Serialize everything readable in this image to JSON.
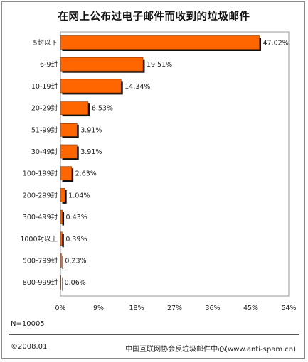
{
  "chart_data": {
    "type": "bar",
    "orientation": "horizontal",
    "title": "在网上公布过电子邮件而收到的垃圾邮件",
    "categories": [
      "5封以下",
      "6-9封",
      "10-19封",
      "20-29封",
      "51-99封",
      "30-49封",
      "100-199封",
      "200-299封",
      "300-499封",
      "1000封以上",
      "500-799封",
      "800-999封"
    ],
    "values": [
      47.02,
      19.51,
      14.34,
      6.53,
      3.91,
      3.91,
      2.63,
      1.04,
      0.43,
      0.39,
      0.23,
      0.06
    ],
    "value_labels": [
      "47.02%",
      "19.51%",
      "14.34%",
      "6.53%",
      "3.91%",
      "3.91%",
      "2.63%",
      "1.04%",
      "0.43%",
      "0.39%",
      "0.23%",
      "0.06%"
    ],
    "xlim": [
      0,
      54
    ],
    "x_ticks": [
      0,
      9,
      18,
      27,
      36,
      45,
      54
    ],
    "x_tick_labels": [
      "0%",
      "9%",
      "18%",
      "27%",
      "36%",
      "45%",
      "54%"
    ],
    "bar_color": "#ff6600",
    "shadow_color": "#111111",
    "grid": false
  },
  "sample_size": "N=10005",
  "footer": {
    "date": "©2008.01",
    "source": "中国互联网协会反垃圾邮件中心(www.anti-spam.cn)"
  }
}
